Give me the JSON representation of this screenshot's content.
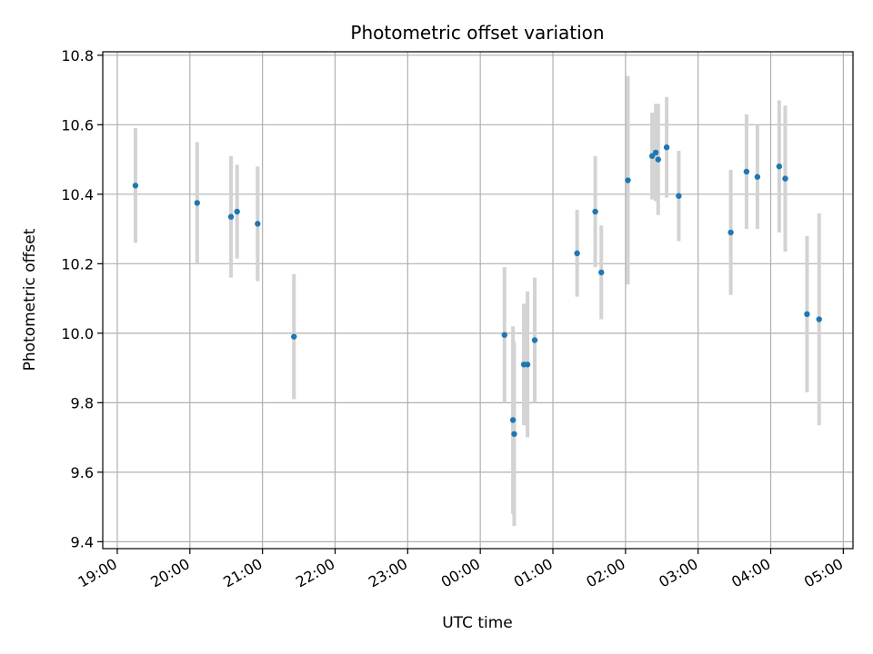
{
  "chart_data": {
    "type": "scatter",
    "title": "Photometric offset variation",
    "xlabel": "UTC time",
    "ylabel": "Photometric offset",
    "grid": true,
    "x_ticks": [
      "19:00",
      "20:00",
      "21:00",
      "22:00",
      "23:00",
      "00:00",
      "01:00",
      "02:00",
      "03:00",
      "04:00",
      "05:00"
    ],
    "y_ticks": [
      "9.4",
      "9.6",
      "9.8",
      "10.0",
      "10.2",
      "10.4",
      "10.6",
      "10.8"
    ],
    "xlim": [
      "18:48",
      "05:08"
    ],
    "ylim": [
      9.38,
      10.81
    ],
    "colors": {
      "point": "#1f77b4",
      "errorbar": "#d3d3d3",
      "grid": "#b0b0b0"
    },
    "series": [
      {
        "points": [
          {
            "x": "19:15",
            "y": 10.425,
            "err": 0.165
          },
          {
            "x": "20:06",
            "y": 10.375,
            "err": 0.175
          },
          {
            "x": "20:34",
            "y": 10.335,
            "err": 0.175
          },
          {
            "x": "20:39",
            "y": 10.35,
            "err": 0.135
          },
          {
            "x": "20:56",
            "y": 10.315,
            "err": 0.165
          },
          {
            "x": "21:26",
            "y": 9.99,
            "err": 0.18
          },
          {
            "x": "00:20",
            "y": 9.995,
            "err": 0.195
          },
          {
            "x": "00:27",
            "y": 9.75,
            "err": 0.27
          },
          {
            "x": "00:28",
            "y": 9.71,
            "err": 0.265
          },
          {
            "x": "00:36",
            "y": 9.91,
            "err": 0.175
          },
          {
            "x": "00:39",
            "y": 9.91,
            "err": 0.21
          },
          {
            "x": "00:45",
            "y": 9.98,
            "err": 0.18
          },
          {
            "x": "01:20",
            "y": 10.23,
            "err": 0.125
          },
          {
            "x": "01:35",
            "y": 10.35,
            "err": 0.16
          },
          {
            "x": "01:40",
            "y": 10.175,
            "err": 0.135
          },
          {
            "x": "02:02",
            "y": 10.44,
            "err": 0.3
          },
          {
            "x": "02:22",
            "y": 10.51,
            "err": 0.125
          },
          {
            "x": "02:25",
            "y": 10.52,
            "err": 0.14
          },
          {
            "x": "02:27",
            "y": 10.5,
            "err": 0.16
          },
          {
            "x": "02:34",
            "y": 10.535,
            "err": 0.145
          },
          {
            "x": "02:44",
            "y": 10.395,
            "err": 0.13
          },
          {
            "x": "03:27",
            "y": 10.29,
            "err": 0.18
          },
          {
            "x": "03:40",
            "y": 10.465,
            "err": 0.165
          },
          {
            "x": "03:49",
            "y": 10.45,
            "err": 0.15
          },
          {
            "x": "04:07",
            "y": 10.48,
            "err": 0.19
          },
          {
            "x": "04:12",
            "y": 10.445,
            "err": 0.21
          },
          {
            "x": "04:30",
            "y": 10.055,
            "err": 0.225
          },
          {
            "x": "04:40",
            "y": 10.04,
            "err": 0.305
          }
        ]
      }
    ]
  }
}
